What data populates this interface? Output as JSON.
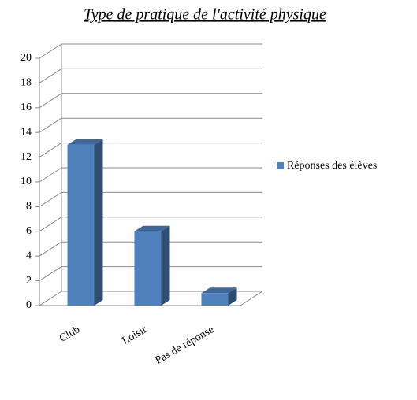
{
  "chart_data": {
    "type": "bar",
    "title": "Type de pratique de l'activité physique",
    "categories": [
      "Club",
      "Loisir",
      "Pas de réponse"
    ],
    "series": [
      {
        "name": "Réponses des élèves",
        "color": "#4f81bd",
        "values": [
          13,
          6,
          1
        ]
      }
    ],
    "ylim": [
      0,
      20
    ],
    "yticks": [
      0,
      2,
      4,
      6,
      8,
      10,
      12,
      14,
      16,
      18,
      20
    ],
    "grid": true,
    "legend": "right"
  }
}
